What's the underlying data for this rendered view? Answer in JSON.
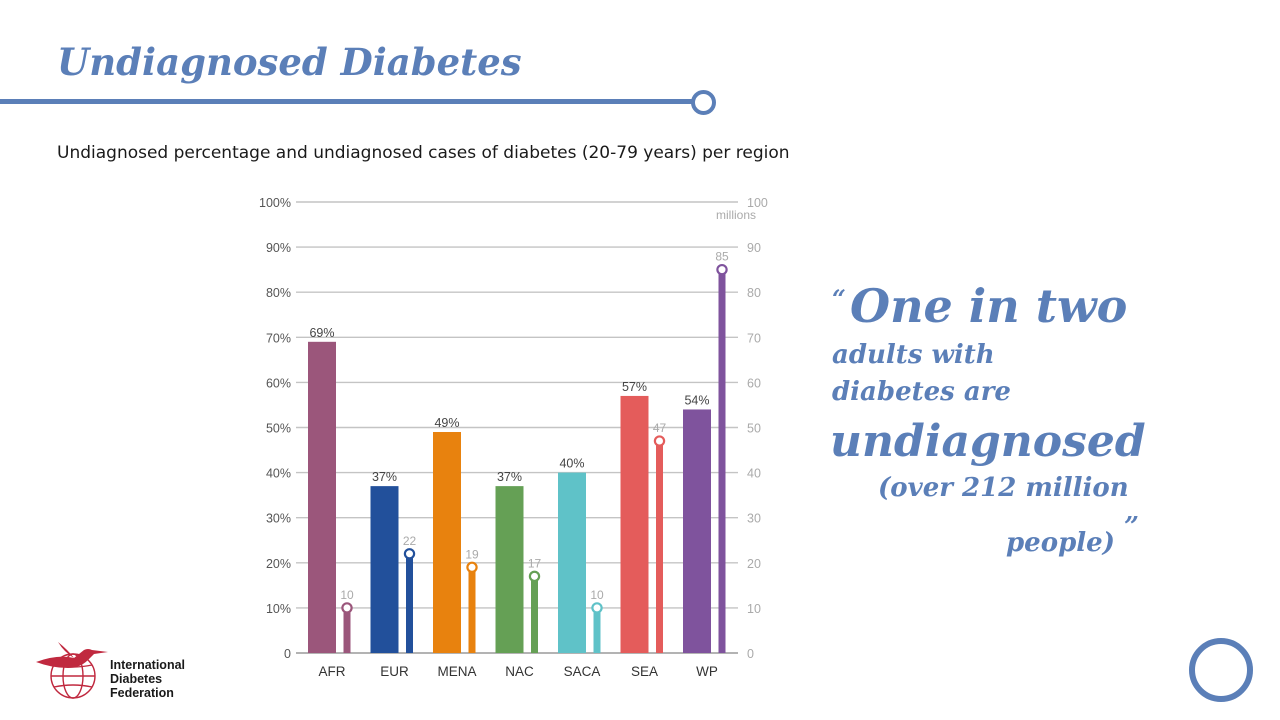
{
  "slide": {
    "title": "Undiagnosed Diabetes",
    "subtitle": "Undiagnosed percentage and undiagnosed cases of diabetes (20-79 years) per region",
    "accent_color": "#5b7fb8"
  },
  "quote": {
    "open_mark": "“",
    "line1": "One in two",
    "line2": "adults with",
    "line3": "diabetes are",
    "line4": "undiagnosed",
    "line5": "(over 212 million",
    "line6": "people)",
    "close_mark": "”"
  },
  "logo": {
    "line1": "International",
    "line2": "Diabetes",
    "line3": "Federation",
    "icon": "hummingbird-globe-icon",
    "color": "#c0293f"
  },
  "corner": {
    "icon": "ring-icon"
  },
  "chart_data": {
    "type": "bar",
    "categories": [
      "AFR",
      "EUR",
      "MENA",
      "NAC",
      "SACA",
      "SEA",
      "WP"
    ],
    "left_axis": {
      "ticks": [
        "0",
        "10%",
        "20%",
        "30%",
        "40%",
        "50%",
        "60%",
        "70%",
        "80%",
        "90%",
        "100%"
      ],
      "ylim": [
        0,
        100
      ]
    },
    "right_axis": {
      "ticks": [
        "0",
        "10",
        "20",
        "30",
        "40",
        "50",
        "60",
        "70",
        "80",
        "90",
        "100"
      ],
      "unit_label": "millions",
      "ylim": [
        0,
        100
      ]
    },
    "series": [
      {
        "values": [
          69,
          37,
          49,
          37,
          40,
          57,
          54
        ],
        "labels": [
          "69%",
          "37%",
          "49%",
          "37%",
          "40%",
          "57%",
          "54%"
        ],
        "style": "bar"
      },
      {
        "values": [
          10,
          22,
          19,
          17,
          10,
          47,
          85
        ],
        "labels": [
          "10",
          "22",
          "19",
          "17",
          "10",
          "47",
          "85"
        ],
        "style": "lollipop"
      }
    ],
    "colors": [
      "#9b567b",
      "#22509b",
      "#e8820e",
      "#65a055",
      "#5fc2c8",
      "#e45c5b",
      "#7f539d"
    ],
    "grid": true
  }
}
